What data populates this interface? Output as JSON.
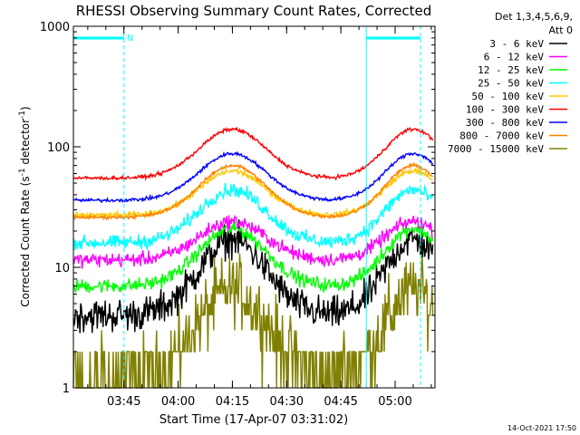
{
  "chart_data": {
    "type": "line",
    "title": "RHESSI Observing Summary Count Rates, Corrected",
    "xlabel": "Start Time (17-Apr-07 03:31:02)",
    "ylabel_main": "Corrected Count Rate (s",
    "ylabel_sup1": "-1",
    "ylabel_mid": " detector",
    "ylabel_sup2": "-1",
    "ylabel_end": ")",
    "yscale": "log",
    "ylim": [
      1,
      1000
    ],
    "xlim_minutes": [
      0,
      100
    ],
    "x_ticks": [
      {
        "minute": 13.97,
        "label": "03:45"
      },
      {
        "minute": 28.97,
        "label": "04:00"
      },
      {
        "minute": 43.97,
        "label": "04:15"
      },
      {
        "minute": 58.97,
        "label": "04:30"
      },
      {
        "minute": 73.97,
        "label": "04:45"
      },
      {
        "minute": 88.97,
        "label": "05:00"
      }
    ],
    "y_ticks": [
      {
        "value": 1,
        "label": "1"
      },
      {
        "value": 10,
        "label": "10"
      },
      {
        "value": 100,
        "label": "100"
      },
      {
        "value": 1000,
        "label": "1000"
      }
    ],
    "legend_header_1": "Det 1,3,4,5,6,9,",
    "legend_header_2": "Att 0",
    "footer_timestamp": "14-Oct-2021 17:50",
    "night_marker": "N",
    "night_intervals": [
      [
        0,
        14.0
      ],
      [
        81.0,
        96.0
      ]
    ],
    "series": [
      {
        "name": "3 - 6 keV",
        "color": "#000000",
        "min": 4,
        "max": 17,
        "noise": 0.12
      },
      {
        "name": "6 - 12 keV",
        "color": "#ff00ff",
        "min": 11.5,
        "max": 24,
        "noise": 0.05
      },
      {
        "name": "12 - 25 keV",
        "color": "#00ff00",
        "min": 7,
        "max": 21,
        "noise": 0.05
      },
      {
        "name": "25 - 50 keV",
        "color": "#00ffff",
        "min": 16,
        "max": 44,
        "noise": 0.05
      },
      {
        "name": "50 - 100 keV",
        "color": "#ffc800",
        "min": 27,
        "max": 63,
        "noise": 0.02
      },
      {
        "name": "100 - 300 keV",
        "color": "#ff0000",
        "min": 55,
        "max": 140,
        "noise": 0.012
      },
      {
        "name": "300 - 800 keV",
        "color": "#0000ff",
        "min": 36,
        "max": 88,
        "noise": 0.012
      },
      {
        "name": "800 - 7000 keV",
        "color": "#ff8000",
        "min": 26,
        "max": 70,
        "noise": 0.012
      },
      {
        "name": "7000 - 15000 keV",
        "color": "#808000",
        "min": 1.3,
        "max": 6.5,
        "noise": 0.25
      }
    ]
  }
}
